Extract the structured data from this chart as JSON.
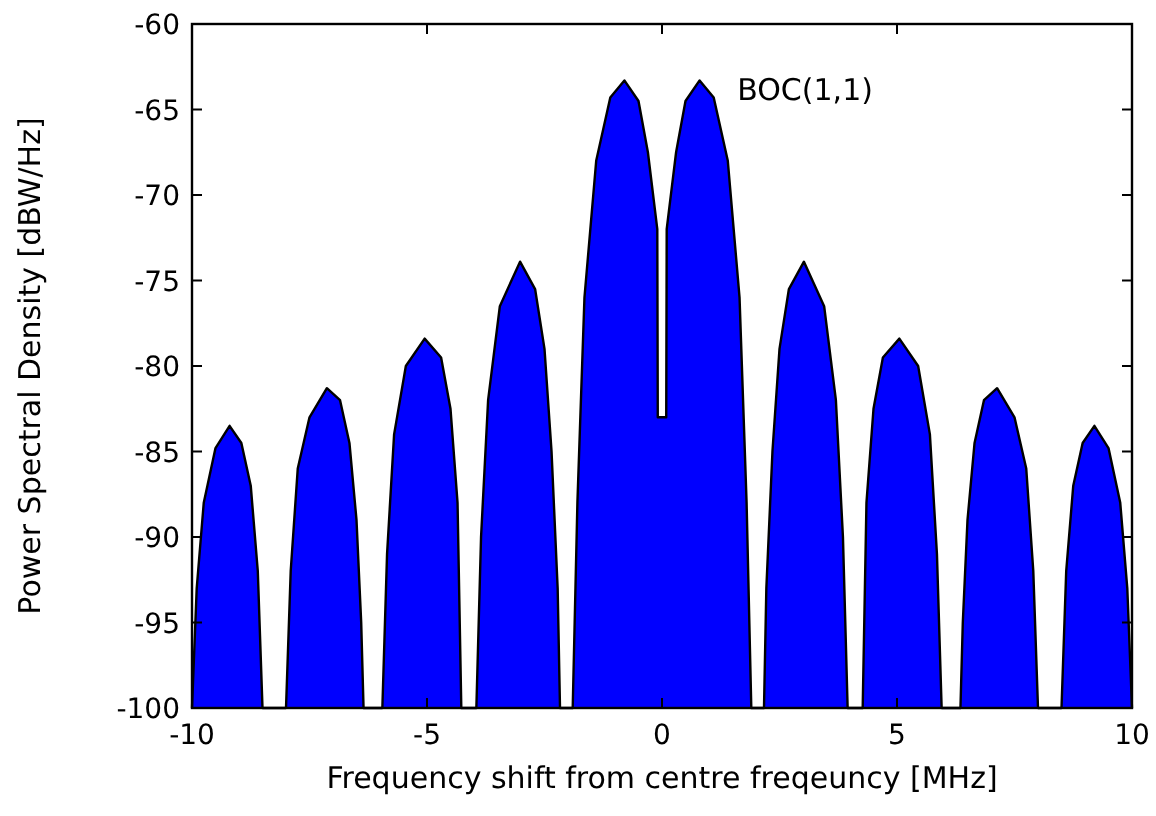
{
  "chart_data": {
    "type": "area",
    "xlabel": "Frequency shift from centre freqeuncy [MHz]",
    "ylabel": "Power Spectral Density [dBW/Hz]",
    "annotations": [
      "BOC(1,1)"
    ],
    "xlim": [
      -10,
      10
    ],
    "ylim": [
      -100,
      -60
    ],
    "xticks": [
      -10,
      -5,
      0,
      5,
      10
    ],
    "yticks": [
      -100,
      -95,
      -90,
      -85,
      -80,
      -75,
      -70,
      -65,
      -60
    ],
    "grid": false,
    "series": [
      {
        "color": "#0000ff",
        "x": [
          -10,
          -9.9,
          -9.75,
          -9.5,
          -9.2,
          -8.95,
          -8.75,
          -8.6,
          -8.5,
          -8.0,
          -7.9,
          -7.75,
          -7.5,
          -7.13,
          -6.85,
          -6.65,
          -6.5,
          -6.4,
          -6.35,
          -5.95,
          -5.85,
          -5.7,
          -5.45,
          -5.05,
          -4.7,
          -4.5,
          -4.35,
          -4.27,
          -3.95,
          -3.85,
          -3.7,
          -3.45,
          -3.02,
          -2.7,
          -2.5,
          -2.35,
          -2.22,
          -2.17,
          -1.9,
          -1.8,
          -1.65,
          -1.4,
          -1.1,
          -0.8,
          -0.5,
          -0.3,
          -0.1,
          -0.09,
          0.09,
          0.1,
          0.3,
          0.5,
          0.8,
          1.1,
          1.4,
          1.65,
          1.8,
          1.9,
          2.17,
          2.22,
          2.35,
          2.5,
          2.7,
          3.02,
          3.45,
          3.7,
          3.85,
          3.95,
          4.27,
          4.35,
          4.5,
          4.7,
          5.05,
          5.45,
          5.7,
          5.85,
          5.95,
          6.35,
          6.4,
          6.5,
          6.65,
          6.85,
          7.13,
          7.5,
          7.75,
          7.9,
          8.0,
          8.5,
          8.6,
          8.75,
          8.95,
          9.2,
          9.5,
          9.75,
          9.9,
          10
        ],
        "values": [
          -100,
          -93,
          -88,
          -84.8,
          -83.5,
          -84.5,
          -87,
          -92,
          -100,
          -100,
          -92,
          -86,
          -83,
          -81.3,
          -82,
          -84.5,
          -89,
          -95,
          -100,
          -100,
          -91,
          -84,
          -80,
          -78.4,
          -79.5,
          -82.5,
          -88,
          -100,
          -100,
          -90,
          -82,
          -76.5,
          -73.9,
          -75.5,
          -79,
          -85,
          -93,
          -100,
          -100,
          -88,
          -76,
          -68,
          -64.3,
          -63.3,
          -64.5,
          -67.5,
          -72,
          -83,
          -83,
          -72,
          -67.5,
          -64.5,
          -63.3,
          -64.3,
          -68,
          -76,
          -88,
          -100,
          -100,
          -93,
          -85,
          -79,
          -75.5,
          -73.9,
          -76.5,
          -82,
          -90,
          -100,
          -100,
          -88,
          -82.5,
          -79.5,
          -78.4,
          -80,
          -84,
          -91,
          -100,
          -100,
          -95,
          -89,
          -84.5,
          -82,
          -81.3,
          -83,
          -86,
          -92,
          -100,
          -100,
          -92,
          -87,
          -84.5,
          -83.5,
          -84.8,
          -88,
          -93,
          -100
        ]
      }
    ]
  }
}
